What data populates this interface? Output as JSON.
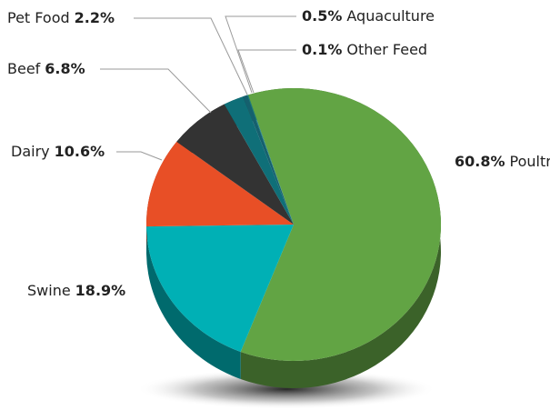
{
  "chart_data": {
    "type": "pie",
    "categories": [
      "Poultry",
      "Swine",
      "Dairy",
      "Beef",
      "Pet Food",
      "Aquaculture",
      "Other Feed"
    ],
    "values": [
      60.8,
      18.9,
      10.6,
      6.8,
      2.2,
      0.5,
      0.1
    ],
    "value_labels": [
      "60.8%",
      "18.9%",
      "10.6%",
      "6.8%",
      "2.2%",
      "0.5%",
      "0.1%"
    ],
    "colors": [
      "#62a444",
      "#00b0b5",
      "#e84f26",
      "#333333",
      "#0f6f78",
      "#15606e",
      "#1b7f86"
    ]
  }
}
